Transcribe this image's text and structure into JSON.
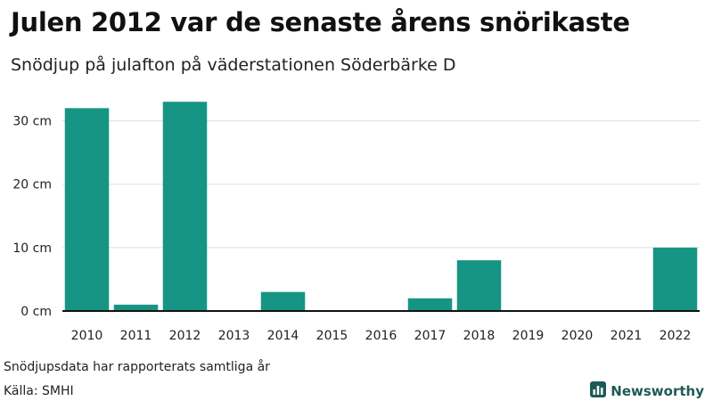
{
  "title": "Julen 2012 var de senaste årens snörikaste",
  "subtitle": "Snödjup på julafton på väderstationen Söderbärke D",
  "note": "Snödjupsdata har rapporterats samtliga år",
  "source": "Källa: SMHI",
  "brand": {
    "name": "Newsworthy",
    "icon": "bar-chart-logo-icon",
    "color": "#1e5a55"
  },
  "colors": {
    "bar": "#169584",
    "grid": "#dddddd",
    "axis": "#111111"
  },
  "chart_data": {
    "type": "bar",
    "categories": [
      "2010",
      "2011",
      "2012",
      "2013",
      "2014",
      "2015",
      "2016",
      "2017",
      "2018",
      "2019",
      "2020",
      "2021",
      "2022"
    ],
    "values": [
      32,
      1,
      33,
      0,
      3,
      0,
      0,
      2,
      8,
      0,
      0,
      0,
      10
    ],
    "ylim": [
      0,
      35
    ],
    "yticks": [
      0,
      10,
      20,
      30
    ],
    "ytick_labels": [
      "0 cm",
      "10 cm",
      "20 cm",
      "30 cm"
    ],
    "xlabel": "",
    "ylabel": "",
    "grid": true
  }
}
